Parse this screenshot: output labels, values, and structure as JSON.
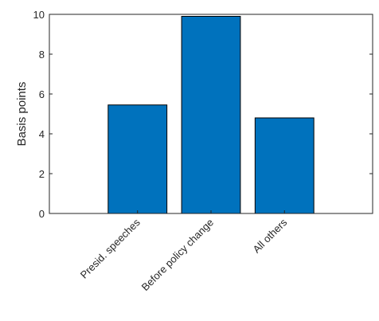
{
  "chart_data": {
    "type": "bar",
    "ylabel": "Basis points",
    "categories": [
      "Presid. speeches",
      "Before policy change",
      "All others"
    ],
    "values": [
      5.45,
      9.9,
      4.8
    ],
    "color": "#0072bd",
    "ylim": [
      0,
      10
    ],
    "yticks": [
      0,
      2,
      4,
      6,
      8,
      10
    ],
    "grid": false
  }
}
